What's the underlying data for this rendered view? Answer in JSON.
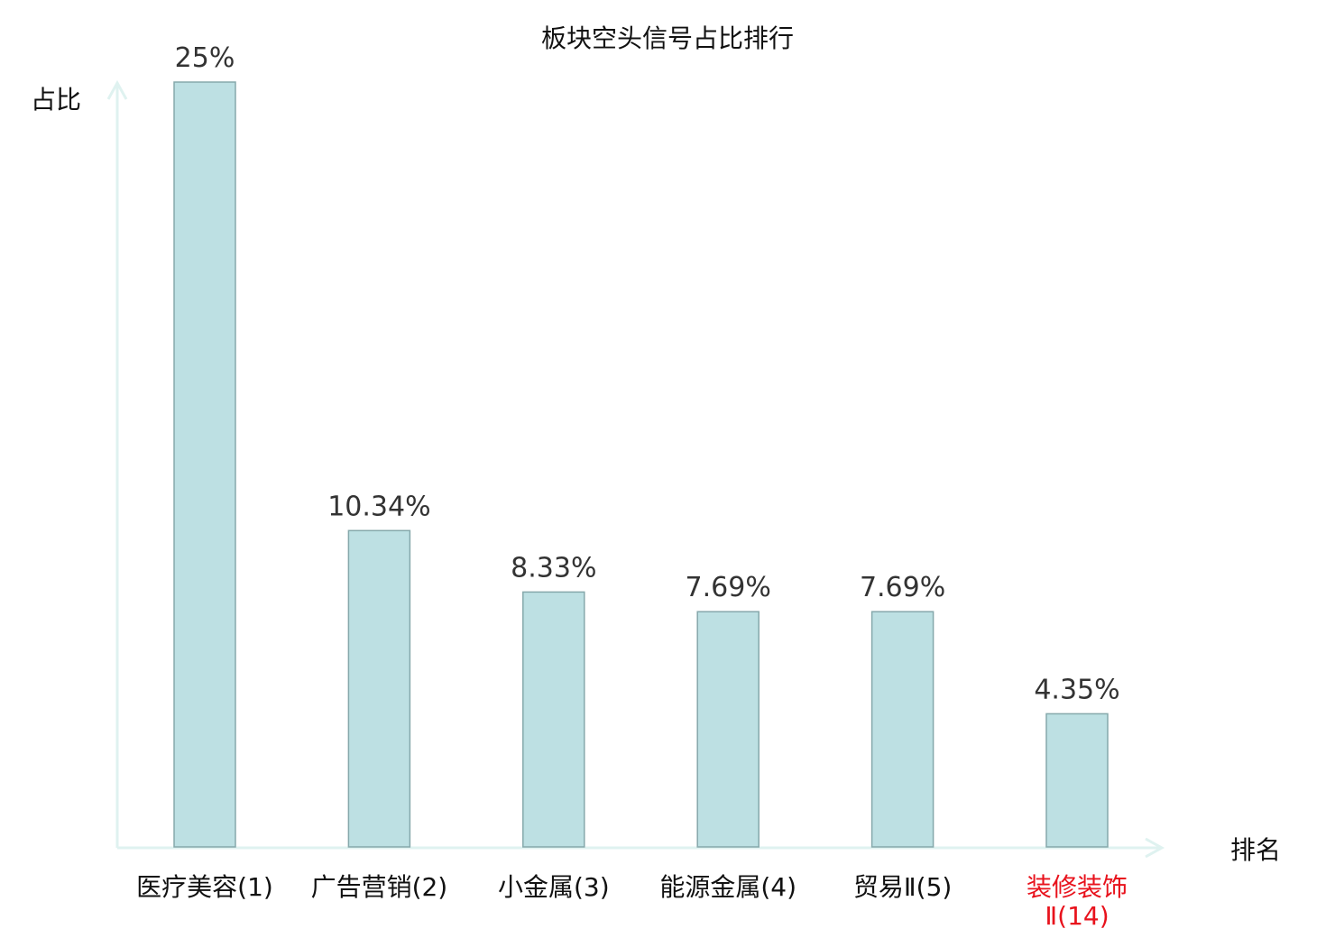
{
  "chart_data": {
    "type": "bar",
    "title": "板块空头信号占比排行",
    "xlabel": "排名",
    "ylabel": "占比",
    "categories": [
      {
        "lines": [
          "医疗美容(1)"
        ],
        "highlight": false
      },
      {
        "lines": [
          "广告营销(2)"
        ],
        "highlight": false
      },
      {
        "lines": [
          "小金属(3)"
        ],
        "highlight": false
      },
      {
        "lines": [
          "能源金属(4)"
        ],
        "highlight": false
      },
      {
        "lines": [
          "贸易Ⅱ(5)"
        ],
        "highlight": false
      },
      {
        "lines": [
          "装修装饰",
          "Ⅱ(14)"
        ],
        "highlight": true
      }
    ],
    "values": [
      25,
      10.34,
      8.33,
      7.69,
      7.69,
      4.35
    ],
    "value_labels": [
      "25%",
      "10.34%",
      "8.33%",
      "7.69%",
      "7.69%",
      "4.35%"
    ],
    "ylim": [
      0,
      25
    ],
    "grid": false,
    "colors": {
      "bar_fill": "#bde0e3",
      "bar_stroke": "#85a8ab",
      "axis": "#dff2f0",
      "text": "#111111",
      "value_text": "#333333",
      "highlight": "#e8121c"
    }
  }
}
